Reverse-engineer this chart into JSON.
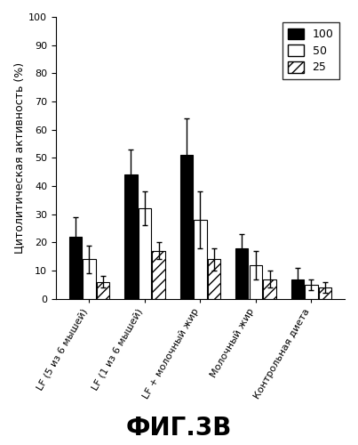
{
  "categories": [
    "LF (5 из 6 мышей)",
    "LF (1 из 6 мышей)",
    "LF + молочный жир",
    "Молочный жир",
    "Контрольная диета"
  ],
  "series": {
    "100": [
      22,
      44,
      51,
      18,
      7
    ],
    "50": [
      14,
      32,
      28,
      12,
      5
    ],
    "25": [
      6,
      17,
      14,
      7,
      4
    ]
  },
  "errors": {
    "100": [
      7,
      9,
      13,
      5,
      4
    ],
    "50": [
      5,
      6,
      10,
      5,
      2
    ],
    "25": [
      2,
      3,
      4,
      3,
      2
    ]
  },
  "legend_labels": [
    "100",
    "50",
    "25"
  ],
  "ylabel": "Цитолитическая активность (%)",
  "ylim": [
    0,
    100
  ],
  "yticks": [
    0,
    10,
    20,
    30,
    40,
    50,
    60,
    70,
    80,
    90,
    100
  ],
  "figure_label": "ФИГ.3В",
  "background_color": "#ffffff",
  "title_fontsize": 20,
  "ylabel_fontsize": 9,
  "tick_fontsize": 8,
  "legend_fontsize": 9,
  "xticklabel_fontsize": 8,
  "xticklabel_rotation": 60
}
